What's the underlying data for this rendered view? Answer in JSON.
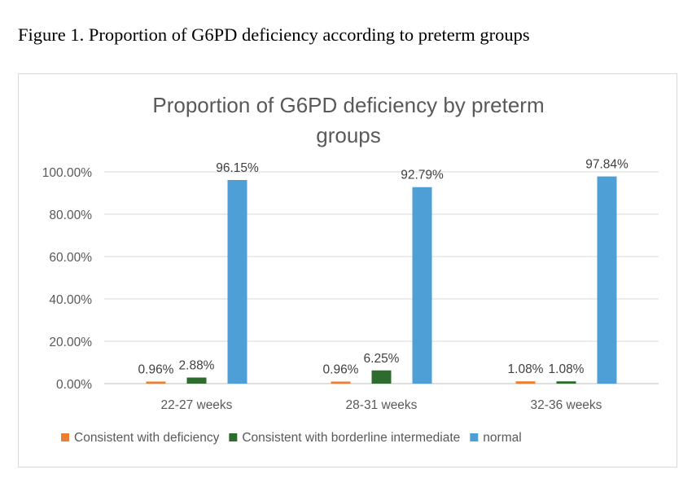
{
  "figure_caption": "Figure 1. Proportion of G6PD deficiency according to preterm groups",
  "chart_data": {
    "type": "bar",
    "title_lines": [
      "Proportion of G6PD deficiency by preterm",
      "groups"
    ],
    "xlabel": "",
    "ylabel": "",
    "categories": [
      "22-27 weeks",
      "28-31 weeks",
      "32-36 weeks"
    ],
    "series": [
      {
        "name": "Consistent with deficiency",
        "color": "#ed7d31",
        "values": [
          0.96,
          0.96,
          1.08
        ],
        "labels": [
          "0.96%",
          "0.96%",
          "1.08%"
        ]
      },
      {
        "name": "Consistent with borderline intermediate",
        "color": "#2e6b2e",
        "values": [
          2.88,
          6.25,
          1.08
        ],
        "labels": [
          "2.88%",
          "6.25%",
          "1.08%"
        ]
      },
      {
        "name": "normal",
        "color": "#4d9fd6",
        "values": [
          96.15,
          92.79,
          97.84
        ],
        "labels": [
          "96.15%",
          "92.79%",
          "97.84%"
        ]
      }
    ],
    "ylim": [
      0,
      100
    ],
    "yticks": [
      "0.00%",
      "20.00%",
      "40.00%",
      "60.00%",
      "80.00%",
      "100.00%"
    ],
    "ytick_values": [
      0,
      20,
      40,
      60,
      80,
      100
    ],
    "grid": true,
    "legend_position": "bottom"
  }
}
